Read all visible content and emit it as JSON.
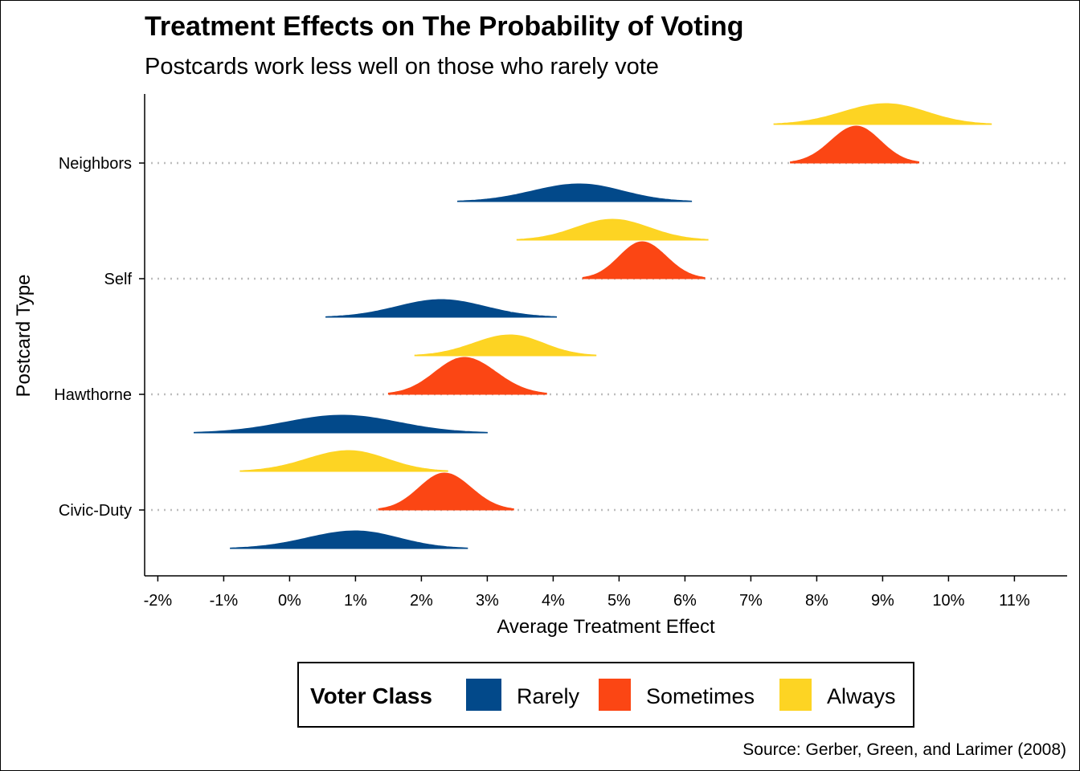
{
  "chart_data": {
    "type": "ridgeline",
    "title": "Treatment Effects on The Probability of Voting",
    "subtitle": "Postcards work less well on those who rarely vote",
    "xlabel": "Average Treatment Effect",
    "ylabel": "Postcard Type",
    "caption": "Source: Gerber, Green, and Larimer (2008)",
    "xlim": [
      -2.2,
      11.8
    ],
    "x_ticks": [
      -2,
      -1,
      0,
      1,
      2,
      3,
      4,
      5,
      6,
      7,
      8,
      9,
      10,
      11
    ],
    "x_tick_labels": [
      "-2%",
      "-1%",
      "0%",
      "1%",
      "2%",
      "3%",
      "4%",
      "5%",
      "6%",
      "7%",
      "8%",
      "9%",
      "10%",
      "11%"
    ],
    "categories": [
      "Civic-Duty",
      "Hawthorne",
      "Self",
      "Neighbors"
    ],
    "grid": "horizontal dotted at category baselines",
    "legend": {
      "title": "Voter Class",
      "position": "bottom",
      "entries": [
        "Rarely",
        "Sometimes",
        "Always"
      ]
    },
    "colors": {
      "Rarely": "#02498a",
      "Sometimes": "#fb4614",
      "Always": "#fdd423"
    },
    "series": [
      {
        "name": "Rarely",
        "distributions": [
          {
            "category": "Civic-Duty",
            "mean": 1.0,
            "min": -0.9,
            "max": 2.7
          },
          {
            "category": "Hawthorne",
            "mean": 0.8,
            "min": -1.45,
            "max": 3.0
          },
          {
            "category": "Self",
            "mean": 2.3,
            "min": 0.55,
            "max": 4.05
          },
          {
            "category": "Neighbors",
            "mean": 4.4,
            "min": 2.55,
            "max": 6.1
          }
        ]
      },
      {
        "name": "Sometimes",
        "distributions": [
          {
            "category": "Civic-Duty",
            "mean": 2.35,
            "min": 1.35,
            "max": 3.4
          },
          {
            "category": "Hawthorne",
            "mean": 2.65,
            "min": 1.5,
            "max": 3.9
          },
          {
            "category": "Self",
            "mean": 5.35,
            "min": 4.45,
            "max": 6.3
          },
          {
            "category": "Neighbors",
            "mean": 8.6,
            "min": 7.6,
            "max": 9.55
          }
        ]
      },
      {
        "name": "Always",
        "distributions": [
          {
            "category": "Civic-Duty",
            "mean": 0.9,
            "min": -0.75,
            "max": 2.4
          },
          {
            "category": "Hawthorne",
            "mean": 3.35,
            "min": 1.9,
            "max": 4.65
          },
          {
            "category": "Self",
            "mean": 4.9,
            "min": 3.45,
            "max": 6.35
          },
          {
            "category": "Neighbors",
            "mean": 9.05,
            "min": 7.35,
            "max": 10.65
          }
        ]
      }
    ]
  }
}
